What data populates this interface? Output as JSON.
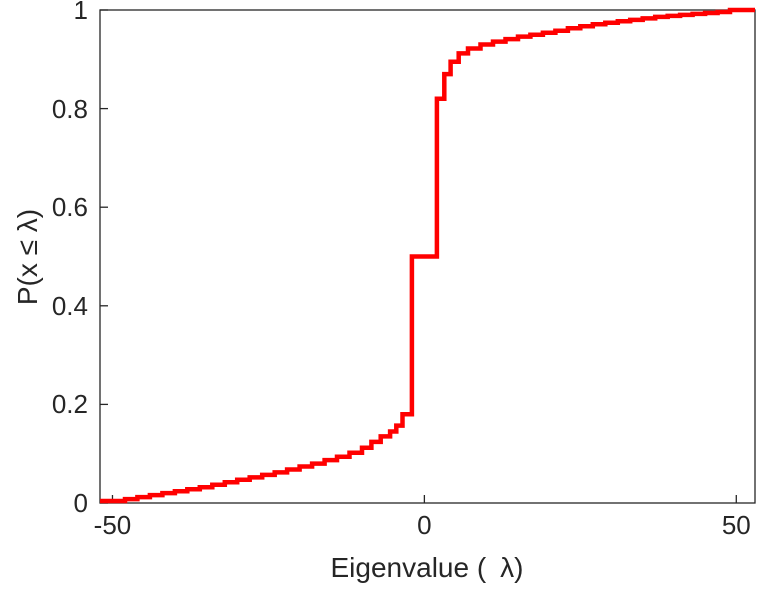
{
  "figure": {
    "background": "#ffffff",
    "axis_color": "#262626",
    "tick_length": 8
  },
  "chart_data": {
    "type": "line",
    "subtype": "empirical-cdf-step",
    "title": "",
    "xlabel": "Eigenvalue ( λ)",
    "ylabel": "P(x ≤ λ)",
    "xlim": [
      -52,
      53
    ],
    "ylim": [
      0,
      1
    ],
    "grid": false,
    "legend": null,
    "xticks": [
      -50,
      0,
      50
    ],
    "xtick_labels": [
      "-50",
      "0",
      "50"
    ],
    "yticks": [
      0,
      0.2,
      0.4,
      0.6,
      0.8,
      1
    ],
    "ytick_labels": [
      "0",
      "0.2",
      "0.4",
      "0.6",
      "0.8",
      "1"
    ],
    "series": [
      {
        "name": "eigenvalue-ecdf",
        "color": "#ff0000",
        "line_width": 4.5,
        "step": "post",
        "points": [
          [
            -50,
            0.004
          ],
          [
            -48,
            0.008
          ],
          [
            -46,
            0.012
          ],
          [
            -44,
            0.016
          ],
          [
            -42,
            0.02
          ],
          [
            -40,
            0.024
          ],
          [
            -38,
            0.028
          ],
          [
            -36,
            0.032
          ],
          [
            -34,
            0.037
          ],
          [
            -32,
            0.042
          ],
          [
            -30,
            0.047
          ],
          [
            -28,
            0.052
          ],
          [
            -26,
            0.057
          ],
          [
            -24,
            0.062
          ],
          [
            -22,
            0.068
          ],
          [
            -20,
            0.074
          ],
          [
            -18,
            0.08
          ],
          [
            -16,
            0.087
          ],
          [
            -14,
            0.094
          ],
          [
            -12,
            0.102
          ],
          [
            -10,
            0.112
          ],
          [
            -8.5,
            0.124
          ],
          [
            -7,
            0.135
          ],
          [
            -5.5,
            0.145
          ],
          [
            -4.5,
            0.157
          ],
          [
            -3.5,
            0.18
          ],
          [
            -2,
            0.5
          ],
          [
            2,
            0.82
          ],
          [
            3.2,
            0.87
          ],
          [
            4.2,
            0.895
          ],
          [
            5.5,
            0.912
          ],
          [
            7,
            0.922
          ],
          [
            9,
            0.93
          ],
          [
            11,
            0.936
          ],
          [
            13,
            0.941
          ],
          [
            15,
            0.946
          ],
          [
            17,
            0.95
          ],
          [
            19,
            0.954
          ],
          [
            21,
            0.958
          ],
          [
            23,
            0.963
          ],
          [
            25,
            0.967
          ],
          [
            27,
            0.971
          ],
          [
            29,
            0.974
          ],
          [
            31,
            0.977
          ],
          [
            33,
            0.98
          ],
          [
            35,
            0.983
          ],
          [
            37,
            0.986
          ],
          [
            39,
            0.988
          ],
          [
            41,
            0.99
          ],
          [
            43,
            0.992
          ],
          [
            45,
            0.994
          ],
          [
            47,
            0.996
          ],
          [
            49,
            1.0
          ]
        ]
      }
    ]
  }
}
